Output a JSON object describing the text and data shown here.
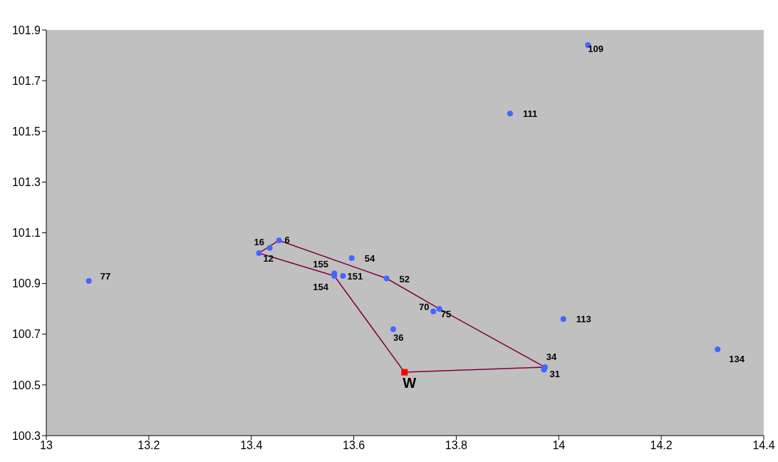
{
  "chart_data": {
    "type": "scatter",
    "xlim": [
      13,
      14.4
    ],
    "xticks": [
      13,
      13.2,
      13.4,
      13.6,
      13.8,
      14,
      14.2,
      14.4
    ],
    "ylim": [
      100.3,
      101.9
    ],
    "yticks": [
      100.3,
      100.5,
      100.7,
      100.9,
      101.1,
      101.3,
      101.5,
      101.7,
      101.9
    ],
    "grid": false,
    "legend": false,
    "series": [
      {
        "color": "#4466ff",
        "marker": "circle",
        "x": [
          14.057,
          13.905,
          13.083,
          13.415,
          13.436,
          13.454,
          13.596,
          13.562,
          13.562,
          13.579,
          13.664,
          13.755,
          13.767,
          13.677,
          13.973,
          13.971,
          14.009,
          14.31
        ],
        "values": [
          101.84,
          101.57,
          100.91,
          101.02,
          101.04,
          101.07,
          101.0,
          100.94,
          100.93,
          100.93,
          100.92,
          100.79,
          100.8,
          100.72,
          100.57,
          100.56,
          100.76,
          100.64
        ]
      },
      {
        "type": "scatter",
        "name": "W",
        "color": "#ff0000",
        "marker": "square",
        "x": [
          13.699
        ],
        "values": [
          100.55
        ]
      },
      {
        "type": "line",
        "color": "#800040",
        "marker": "none",
        "line_style": "solid",
        "x": [
          13.415,
          13.454,
          13.664,
          13.767,
          13.973
        ],
        "values": [
          101.02,
          101.07,
          100.92,
          100.8,
          100.57
        ]
      },
      {
        "type": "line",
        "color": "#800040",
        "marker": "none",
        "line_style": "solid",
        "x": [
          13.415,
          13.562,
          13.699,
          13.973
        ],
        "values": [
          101.02,
          100.93,
          100.55,
          100.57
        ]
      }
    ],
    "annotations": [
      {
        "text": "109",
        "x": 14.057,
        "y": 101.84
      },
      {
        "text": "111",
        "x": 13.905,
        "y": 101.57
      },
      {
        "text": "77",
        "x": 13.083,
        "y": 100.91
      },
      {
        "text": "12",
        "x": 13.415,
        "y": 101.02
      },
      {
        "text": "16",
        "x": 13.436,
        "y": 101.04
      },
      {
        "text": "6",
        "x": 13.454,
        "y": 101.07
      },
      {
        "text": "54",
        "x": 13.596,
        "y": 101.0
      },
      {
        "text": "155",
        "x": 13.562,
        "y": 100.94
      },
      {
        "text": "154",
        "x": 13.562,
        "y": 100.93
      },
      {
        "text": "151",
        "x": 13.579,
        "y": 100.93
      },
      {
        "text": "52",
        "x": 13.664,
        "y": 100.92
      },
      {
        "text": "70",
        "x": 13.755,
        "y": 100.79
      },
      {
        "text": "75",
        "x": 13.767,
        "y": 100.8
      },
      {
        "text": "36",
        "x": 13.677,
        "y": 100.72
      },
      {
        "text": "34",
        "x": 13.973,
        "y": 100.57
      },
      {
        "text": "31",
        "x": 13.971,
        "y": 100.56
      },
      {
        "text": "113",
        "x": 14.009,
        "y": 100.76
      },
      {
        "text": "134",
        "x": 14.31,
        "y": 100.64
      }
    ]
  }
}
